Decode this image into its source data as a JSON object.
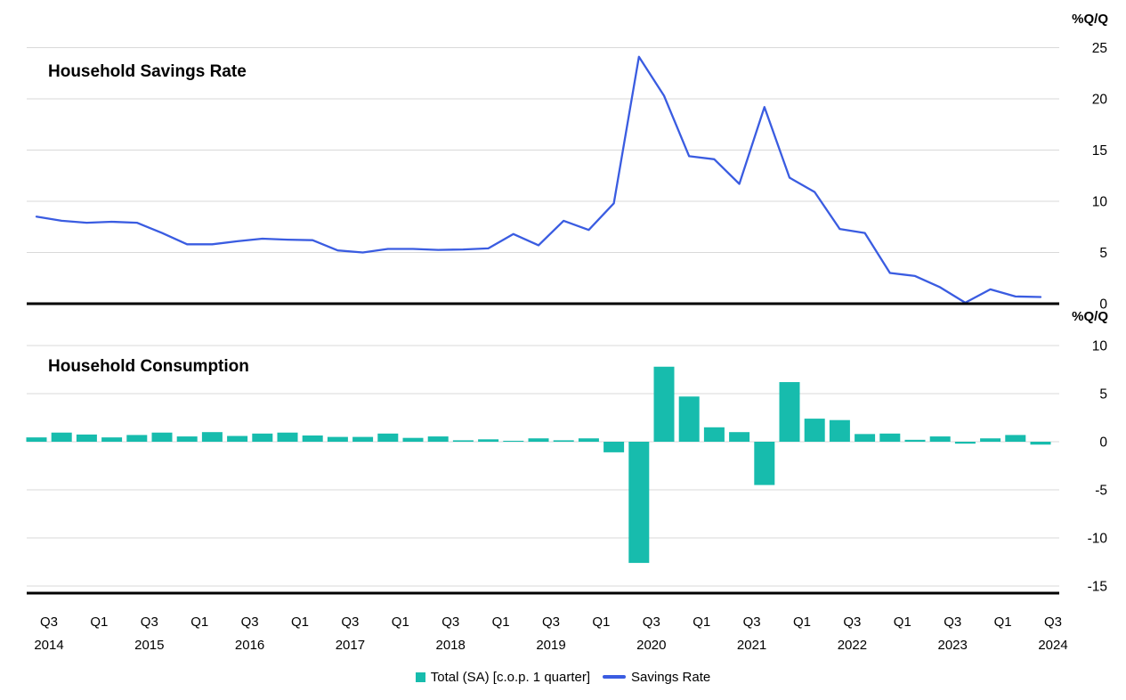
{
  "panels": {
    "top": {
      "title": "Household Savings Rate",
      "unit_label": "%Q/Q",
      "y_ticks": [
        25,
        20,
        15,
        10,
        5,
        0
      ],
      "ylim": [
        0,
        25
      ]
    },
    "bottom": {
      "title": "Household Consumption",
      "unit_label": "%Q/Q",
      "y_ticks": [
        10,
        5,
        0,
        -5,
        -10,
        -15
      ],
      "ylim": [
        -15,
        10
      ]
    }
  },
  "legend": {
    "items": [
      {
        "swatch": "bar-swatch",
        "label": "Total (SA) [c.o.p. 1 quarter]",
        "color": "#17bcad"
      },
      {
        "swatch": "line-swatch",
        "label": "Savings Rate",
        "color": "#3a5ce1"
      }
    ]
  },
  "colors": {
    "savings_line": "#3a5ce1",
    "consumption_bar": "#17bcad",
    "gridline": "#d9d9d9",
    "axis": "#000000",
    "text": "#000000",
    "background": "#ffffff"
  },
  "x_axis": {
    "tick_labels": [
      {
        "q": "Q3",
        "year": "2014"
      },
      {
        "q": "Q1",
        "year": ""
      },
      {
        "q": "Q3",
        "year": "2015"
      },
      {
        "q": "Q1",
        "year": ""
      },
      {
        "q": "Q3",
        "year": "2016"
      },
      {
        "q": "Q1",
        "year": ""
      },
      {
        "q": "Q3",
        "year": "2017"
      },
      {
        "q": "Q1",
        "year": ""
      },
      {
        "q": "Q3",
        "year": "2018"
      },
      {
        "q": "Q1",
        "year": ""
      },
      {
        "q": "Q3",
        "year": "2019"
      },
      {
        "q": "Q1",
        "year": ""
      },
      {
        "q": "Q3",
        "year": "2020"
      },
      {
        "q": "Q1",
        "year": ""
      },
      {
        "q": "Q3",
        "year": "2021"
      },
      {
        "q": "Q1",
        "year": ""
      },
      {
        "q": "Q3",
        "year": "2022"
      },
      {
        "q": "Q1",
        "year": ""
      },
      {
        "q": "Q3",
        "year": "2023"
      },
      {
        "q": "Q1",
        "year": ""
      },
      {
        "q": "Q3",
        "year": "2024"
      }
    ]
  },
  "chart_data": [
    {
      "type": "line",
      "title": "Household Savings Rate",
      "series_name": "Savings Rate",
      "unit": "%Q/Q",
      "legend_position": "bottom",
      "grid": true,
      "ylim": [
        0,
        25
      ],
      "x": [
        "2014Q3",
        "2014Q4",
        "2015Q1",
        "2015Q2",
        "2015Q3",
        "2015Q4",
        "2016Q1",
        "2016Q2",
        "2016Q3",
        "2016Q4",
        "2017Q1",
        "2017Q2",
        "2017Q3",
        "2017Q4",
        "2018Q1",
        "2018Q2",
        "2018Q3",
        "2018Q4",
        "2019Q1",
        "2019Q2",
        "2019Q3",
        "2019Q4",
        "2020Q1",
        "2020Q2",
        "2020Q3",
        "2020Q4",
        "2021Q1",
        "2021Q2",
        "2021Q3",
        "2021Q4",
        "2022Q1",
        "2022Q2",
        "2022Q3",
        "2022Q4",
        "2023Q1",
        "2023Q2",
        "2023Q3",
        "2023Q4",
        "2024Q1",
        "2024Q2",
        "2024Q3"
      ],
      "values": [
        8.5,
        8.1,
        7.9,
        8.0,
        7.9,
        6.9,
        5.8,
        5.8,
        6.1,
        6.35,
        6.25,
        6.2,
        5.2,
        5.0,
        5.35,
        5.35,
        5.25,
        5.3,
        5.4,
        6.8,
        5.7,
        8.1,
        7.2,
        9.8,
        24.1,
        20.3,
        14.4,
        14.1,
        11.7,
        19.2,
        12.3,
        10.9,
        7.3,
        6.9,
        3.0,
        2.7,
        1.6,
        0.1,
        1.4,
        0.7,
        0.65
      ]
    },
    {
      "type": "bar",
      "title": "Household Consumption",
      "series_name": "Total (SA) [c.o.p. 1 quarter]",
      "unit": "%Q/Q",
      "legend_position": "bottom",
      "grid": true,
      "ylim": [
        -15,
        10
      ],
      "x": [
        "2014Q3",
        "2014Q4",
        "2015Q1",
        "2015Q2",
        "2015Q3",
        "2015Q4",
        "2016Q1",
        "2016Q2",
        "2016Q3",
        "2016Q4",
        "2017Q1",
        "2017Q2",
        "2017Q3",
        "2017Q4",
        "2018Q1",
        "2018Q2",
        "2018Q3",
        "2018Q4",
        "2019Q1",
        "2019Q2",
        "2019Q3",
        "2019Q4",
        "2020Q1",
        "2020Q2",
        "2020Q3",
        "2020Q4",
        "2021Q1",
        "2021Q2",
        "2021Q3",
        "2021Q4",
        "2022Q1",
        "2022Q2",
        "2022Q3",
        "2022Q4",
        "2023Q1",
        "2023Q2",
        "2023Q3",
        "2023Q4",
        "2024Q1",
        "2024Q2",
        "2024Q3"
      ],
      "values": [
        0.45,
        0.95,
        0.75,
        0.45,
        0.7,
        0.95,
        0.55,
        1.0,
        0.6,
        0.85,
        0.95,
        0.65,
        0.5,
        0.5,
        0.85,
        0.4,
        0.55,
        0.15,
        0.25,
        0.1,
        0.35,
        0.15,
        0.35,
        -1.1,
        -12.6,
        7.8,
        4.7,
        1.5,
        1.0,
        -4.5,
        6.2,
        2.4,
        2.25,
        0.8,
        0.85,
        0.2,
        0.55,
        -0.2,
        0.35,
        0.7,
        -0.3
      ]
    }
  ]
}
